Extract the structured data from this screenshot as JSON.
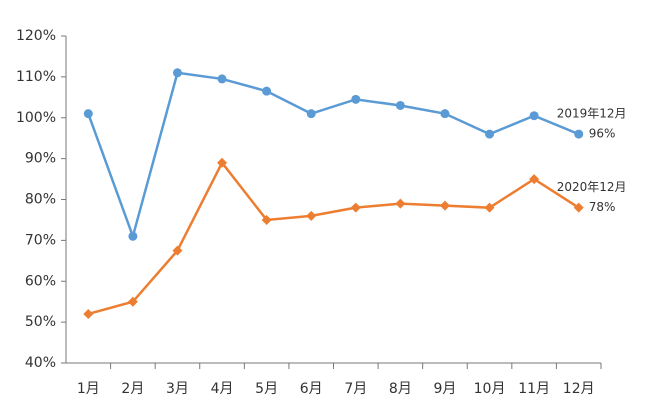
{
  "chart_data": {
    "type": "line",
    "categories": [
      "1月",
      "2月",
      "3月",
      "4月",
      "5月",
      "6月",
      "7月",
      "8月",
      "9月",
      "10月",
      "11月",
      "12月"
    ],
    "series": [
      {
        "name": "2019年12月",
        "color": "#5b9bd5",
        "marker": "circle",
        "values": [
          101,
          71,
          111,
          109.5,
          106.5,
          101,
          104.5,
          103,
          101,
          96,
          100.5,
          96
        ],
        "value_labels": [
          null,
          null,
          null,
          null,
          null,
          null,
          null,
          null,
          null,
          null,
          null,
          "96%"
        ]
      },
      {
        "name": "2020年12月",
        "color": "#ed7d31",
        "marker": "diamond",
        "values": [
          52,
          55,
          67.5,
          89,
          75,
          76,
          78,
          79,
          78.5,
          78,
          85,
          78
        ],
        "value_labels": [
          null,
          null,
          null,
          null,
          null,
          null,
          null,
          null,
          null,
          null,
          null,
          "78%"
        ]
      }
    ],
    "ylim": [
      40,
      120
    ],
    "yticks": [
      {
        "value": 40,
        "label": "40%"
      },
      {
        "value": 50,
        "label": "50%"
      },
      {
        "value": 60,
        "label": "60%"
      },
      {
        "value": 70,
        "label": "70%"
      },
      {
        "value": 80,
        "label": "80%"
      },
      {
        "value": 90,
        "label": "90%"
      },
      {
        "value": 100,
        "label": "100%"
      },
      {
        "value": 110,
        "label": "110%"
      },
      {
        "value": 120,
        "label": "120%"
      }
    ],
    "grid": false
  }
}
